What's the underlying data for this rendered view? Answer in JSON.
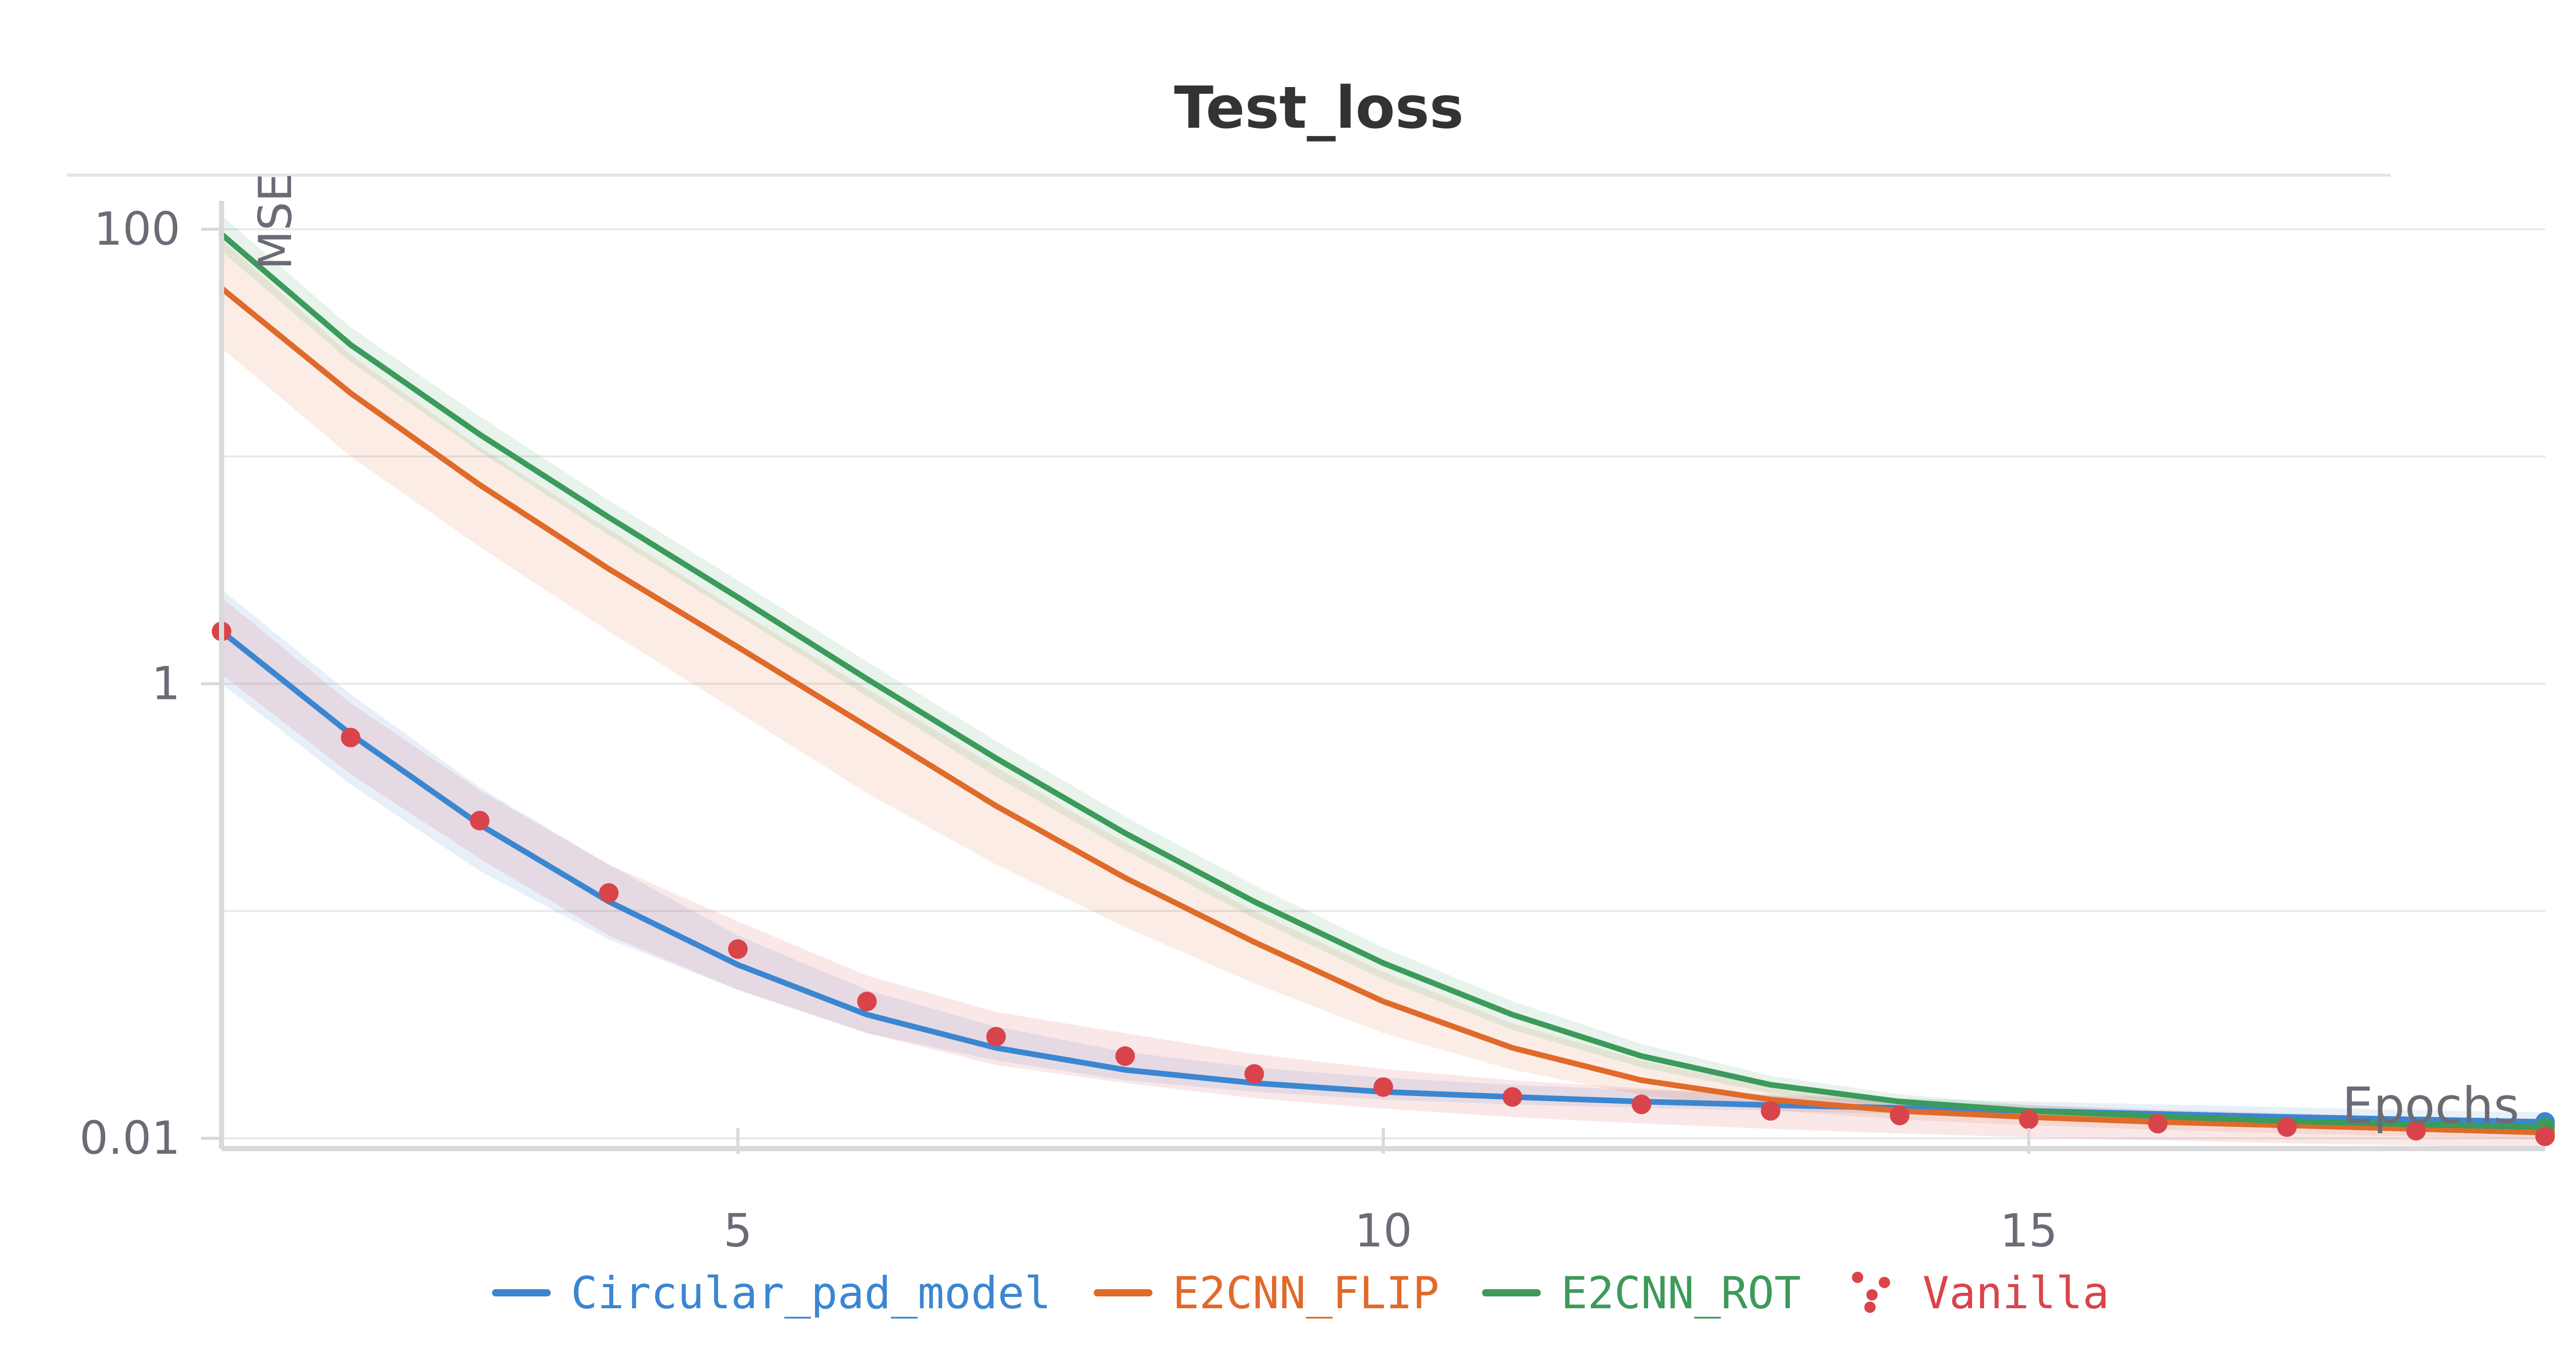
{
  "chart_data": {
    "type": "line",
    "title": "Test_loss",
    "xlabel": "Epochs",
    "ylabel": "MSE",
    "yscale": "log",
    "xlim": [
      1,
      19
    ],
    "ylim": [
      0.008,
      150
    ],
    "x_ticks": [
      5,
      10,
      15
    ],
    "x_tick_labels": [
      "5",
      "10",
      "15"
    ],
    "y_ticks": [
      0.01,
      1,
      100
    ],
    "y_tick_labels": [
      "0.01",
      "1",
      "100"
    ],
    "grid": true,
    "legend_position": "bottom",
    "x": [
      1,
      2,
      3,
      4,
      5,
      6,
      7,
      8,
      9,
      10,
      11,
      12,
      13,
      14,
      15,
      16,
      17,
      18,
      19
    ],
    "series": [
      {
        "name": "Circular_pad_model",
        "style": "line",
        "color": "#3b86d1",
        "values": [
          1.7,
          0.6,
          0.24,
          0.11,
          0.058,
          0.035,
          0.025,
          0.02,
          0.0175,
          0.016,
          0.0152,
          0.0145,
          0.014,
          0.0136,
          0.0132,
          0.0128,
          0.0124,
          0.0121,
          0.0118
        ],
        "band_low": [
          1.0,
          0.36,
          0.15,
          0.075,
          0.045,
          0.029,
          0.022,
          0.018,
          0.016,
          0.0148,
          0.0141,
          0.0136,
          0.0132,
          0.0128,
          0.0125,
          0.0121,
          0.0118,
          0.0115,
          0.0112
        ],
        "band_high": [
          2.6,
          0.9,
          0.35,
          0.16,
          0.078,
          0.045,
          0.031,
          0.024,
          0.0205,
          0.0185,
          0.0172,
          0.0163,
          0.0156,
          0.015,
          0.0145,
          0.0141,
          0.0137,
          0.0133,
          0.013
        ]
      },
      {
        "name": "E2CNN_FLIP",
        "style": "line",
        "color": "#e06a2a",
        "values": [
          55,
          19,
          7.5,
          3.2,
          1.45,
          0.65,
          0.29,
          0.14,
          0.073,
          0.04,
          0.025,
          0.018,
          0.0148,
          0.0132,
          0.0124,
          0.0118,
          0.0114,
          0.011,
          0.0106
        ],
        "band_low": [
          30,
          10,
          4,
          1.7,
          0.75,
          0.33,
          0.16,
          0.085,
          0.048,
          0.029,
          0.02,
          0.0155,
          0.0133,
          0.0121,
          0.0114,
          0.0109,
          0.0105,
          0.0102,
          0.0099
        ],
        "band_high": [
          90,
          28,
          11,
          4.8,
          2.1,
          0.95,
          0.43,
          0.2,
          0.1,
          0.054,
          0.032,
          0.022,
          0.0168,
          0.0145,
          0.0134,
          0.0127,
          0.0122,
          0.0118,
          0.0114
        ]
      },
      {
        "name": "E2CNN_ROT",
        "style": "line",
        "color": "#3c9a5a",
        "values": [
          95,
          31,
          12.5,
          5.4,
          2.4,
          1.05,
          0.47,
          0.22,
          0.11,
          0.059,
          0.035,
          0.023,
          0.0172,
          0.0145,
          0.0132,
          0.0125,
          0.0119,
          0.0115,
          0.0112
        ],
        "band_low": [
          80,
          26,
          10.5,
          4.5,
          2.0,
          0.88,
          0.39,
          0.185,
          0.093,
          0.05,
          0.03,
          0.0205,
          0.0158,
          0.0136,
          0.0125,
          0.0119,
          0.0114,
          0.011,
          0.0107
        ],
        "band_high": [
          115,
          37,
          15,
          6.4,
          2.85,
          1.25,
          0.56,
          0.26,
          0.13,
          0.069,
          0.04,
          0.026,
          0.0188,
          0.0156,
          0.014,
          0.0132,
          0.0125,
          0.0121,
          0.0117
        ]
      },
      {
        "name": "Vanilla",
        "style": "points",
        "color": "#d9444a",
        "values": [
          1.7,
          0.58,
          0.25,
          0.12,
          0.068,
          0.04,
          0.028,
          0.023,
          0.0192,
          0.0168,
          0.0152,
          0.0141,
          0.0132,
          0.0126,
          0.0121,
          0.0116,
          0.0112,
          0.0108,
          0.0102
        ],
        "band_low": [
          1.1,
          0.4,
          0.17,
          0.078,
          0.045,
          0.029,
          0.021,
          0.0175,
          0.015,
          0.0135,
          0.0124,
          0.0116,
          0.011,
          0.0105,
          0.0101,
          0.0098,
          0.0095,
          0.0093,
          0.0091
        ],
        "band_high": [
          2.4,
          0.82,
          0.34,
          0.16,
          0.09,
          0.052,
          0.036,
          0.029,
          0.0235,
          0.0202,
          0.018,
          0.0166,
          0.0154,
          0.0146,
          0.014,
          0.0134,
          0.0129,
          0.0124,
          0.0118
        ]
      }
    ]
  }
}
